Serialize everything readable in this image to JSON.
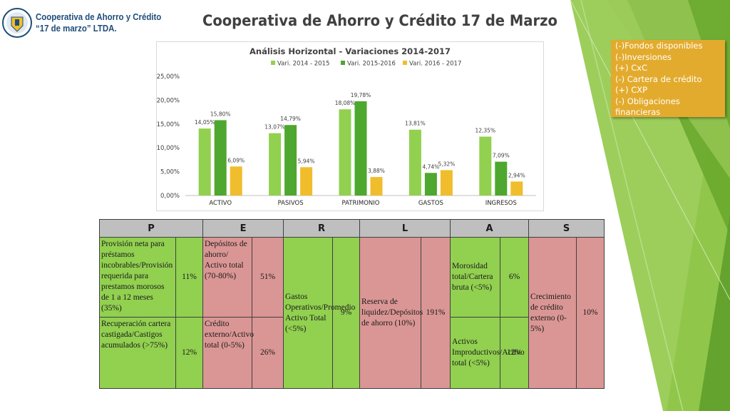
{
  "header": {
    "brand_line1": "Cooperativa de Ahorro y Crédito",
    "brand_line2": "“17 de marzo” LTDA.",
    "slide_title": "Cooperativa de Ahorro y Crédito 17 de Marzo"
  },
  "side_list": {
    "items": [
      "(-)Fondos disponibles",
      "(-)Inversiones",
      "(+) CxC",
      "(-) Cartera de crédito",
      "(+) CXP",
      "(-) Obligaciones financieras"
    ]
  },
  "chart_data": {
    "type": "bar",
    "title": "Análisis Horizontal - Variaciones 2014-2017",
    "categories": [
      "ACTIVO",
      "PASIVOS",
      "PATRIMONIO",
      "GASTOS",
      "INGRESOS"
    ],
    "series": [
      {
        "name": "Vari. 2014 - 2015",
        "values": [
          14.05,
          13.07,
          18.08,
          13.81,
          12.35
        ],
        "labels": [
          "14,05%",
          "13,07%",
          "18,08%",
          "13,81%",
          "12,35%"
        ],
        "color": "#92d050"
      },
      {
        "name": "Vari. 2015-2016",
        "values": [
          15.8,
          14.79,
          19.78,
          4.74,
          7.09
        ],
        "labels": [
          "15,80%",
          "14,79%",
          "19,78%",
          "4,74%",
          "7,09%"
        ],
        "color": "#4ea72e"
      },
      {
        "name": "Vari. 2016 - 2017",
        "values": [
          6.09,
          5.94,
          3.88,
          5.32,
          2.94
        ],
        "labels": [
          "6,09%",
          "5,94%",
          "3,88%",
          "5,32%",
          "2,94%"
        ],
        "color": "#f0bd2c"
      }
    ],
    "yticks": [
      0,
      5,
      10,
      15,
      20,
      25
    ],
    "ytick_labels": [
      "0,00%",
      "5,00%",
      "10,00%",
      "15,00%",
      "20,00%",
      "25,00%"
    ],
    "ylim": [
      0,
      25
    ],
    "legend_position": "top",
    "grid": false
  },
  "table": {
    "headers": [
      "P",
      "E",
      "R",
      "L",
      "A",
      "S"
    ],
    "p1_text": "Provisión neta para préstamos incobrables/Provisión requerida para prestamos morosos de 1 a 12 meses (35%)",
    "p1_value": "11%",
    "p2_text": "Recuperación cartera castigada/Castigos acumulados (>75%)",
    "p2_value": "12%",
    "e1_text": "Depósitos de ahorro/ Activo total (70-80%)",
    "e1_value": "51%",
    "e2_text": "Crédito externo/Activo total (0-5%)",
    "e2_value": "26%",
    "r_text": "Gastos Operativos/Promedio Activo Total (<5%)",
    "r_value": "9%",
    "l_text": "Reserva de liquidez/Depósitos de ahorro (10%)",
    "l_value": "191%",
    "a1_text": "Morosidad total/Cartera bruta (<5%)",
    "a1_value": "6%",
    "a2_text": "Activos Improductivos/Activo total (<5%)",
    "a2_value": "12%",
    "s_text": "Crecimiento de crédito externo (0-5%)",
    "s_value": "10%"
  },
  "colors": {
    "green_cell": "#92d050",
    "red_cell": "#da9694",
    "side_box": "#e3ab2d"
  }
}
